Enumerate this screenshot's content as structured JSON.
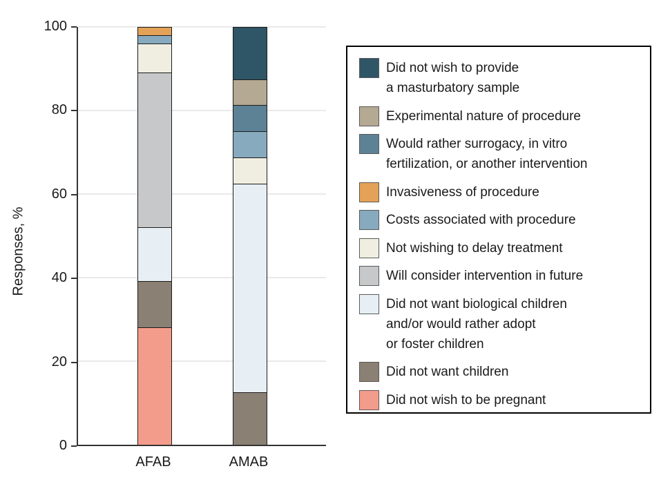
{
  "chart_data": {
    "type": "bar",
    "stacked": true,
    "title": "",
    "xlabel": "",
    "ylabel": "Responses, %",
    "ylim": [
      0,
      100
    ],
    "yticks": [
      0,
      20,
      40,
      60,
      80,
      100
    ],
    "grid": true,
    "legend_position": "right",
    "categories": [
      "AFAB",
      "AMAB"
    ],
    "series": [
      {
        "name": "Did not wish to provide\na masturbatory sample",
        "color": "#2E5667",
        "values": [
          0,
          12.5
        ]
      },
      {
        "name": "Experimental nature of procedure",
        "color": "#B4A992",
        "values": [
          0,
          6.25
        ]
      },
      {
        "name": "Would rather surrogacy, in vitro\nfertilization, or another intervention",
        "color": "#5E8295",
        "values": [
          0,
          6.25
        ]
      },
      {
        "name": "Invasiveness of procedure",
        "color": "#E3A258",
        "values": [
          2,
          0
        ]
      },
      {
        "name": "Costs associated with procedure",
        "color": "#87AABF",
        "values": [
          2,
          6.25
        ]
      },
      {
        "name": "Not wishing to delay treatment",
        "color": "#EFEEE1",
        "values": [
          7,
          6.25
        ]
      },
      {
        "name": "Will consider intervention in future",
        "color": "#C7C8CA",
        "values": [
          37,
          0
        ]
      },
      {
        "name": "Did not want biological children\nand/or would rather adopt\nor foster children",
        "color": "#E7EFF4",
        "values": [
          13,
          50
        ]
      },
      {
        "name": "Did not want children",
        "color": "#8A8073",
        "values": [
          11,
          12.5
        ]
      },
      {
        "name": "Did not wish to be pregnant",
        "color": "#F49C8B",
        "values": [
          28,
          0
        ]
      }
    ],
    "colors": {
      "axis": "#333333",
      "gridline": "#E9E9E9",
      "segment_border": "#1A1A1A",
      "legend_border": "#000000",
      "background": "#FFFFFF"
    }
  }
}
